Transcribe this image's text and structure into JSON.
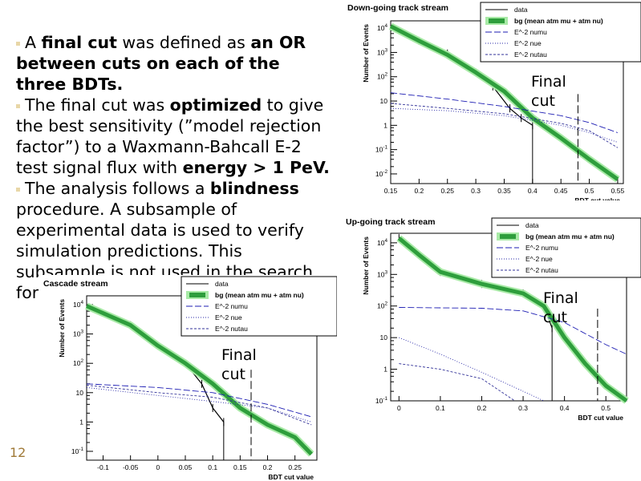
{
  "slide": {
    "page_number": "12",
    "bullets": [
      {
        "parts": [
          {
            "t": "A ",
            "b": false
          },
          {
            "t": "final cut",
            "b": true
          },
          {
            "t": " was defined as ",
            "b": false
          },
          {
            "t": "an OR between cuts on each of the three BDTs.",
            "b": true
          }
        ]
      },
      {
        "parts": [
          {
            "t": "The final cut was ",
            "b": false
          },
          {
            "t": "optimized",
            "b": true
          },
          {
            "t": " to give the best sensitivity (”model rejection factor”) to a Waxmann-Bahcall E-2 test signal flux with ",
            "b": false
          },
          {
            "t": "energy > 1 PeV.",
            "b": true
          }
        ]
      },
      {
        "parts": [
          {
            "t": "The analysis follows a ",
            "b": false
          },
          {
            "t": "blindness",
            "b": true
          },
          {
            "t": " procedure. A subsample of experimental data is used to verify simulation predictions. This subsample is not used in the search for",
            "b": false
          }
        ]
      }
    ]
  },
  "colors": {
    "bg_dark": "#2e9e3c",
    "bg_light": "#a8eaa6",
    "numu": "#1d1db3",
    "nue": "#2a2aa8",
    "nutau": "#333399",
    "bullet_accent": "#e8d7a8",
    "page_number": "#a07a38"
  },
  "chart_data": [
    {
      "type": "line",
      "title": "Down-going track stream",
      "xlabel": "BDT cut value",
      "ylabel": "Number of Events",
      "log_y": true,
      "xlim": [
        0.15,
        0.56
      ],
      "ylim": [
        0.004,
        20000
      ],
      "xticks": [
        "0.15",
        "0.2",
        "0.25",
        "0.3",
        "0.35",
        "0.4",
        "0.45",
        "0.5",
        "0.55"
      ],
      "yticks": [
        "10^{-2}",
        "10^{-1}",
        "1",
        "10",
        "10^{2}",
        "10^{3}",
        "10^{4}"
      ],
      "legend": [
        "data",
        "bg (mean atm mu + atm nu)",
        "E^-2 numu",
        "E^-2 nue",
        "E^-2 nutau"
      ],
      "final_cut": {
        "x": 0.48,
        "label": "Final cut"
      },
      "series": [
        {
          "name": "data",
          "x": [
            0.15,
            0.2,
            0.25,
            0.3,
            0.33,
            0.36,
            0.38,
            0.4
          ],
          "y": [
            12000,
            3000,
            900,
            150,
            40,
            5,
            2,
            1
          ]
        },
        {
          "name": "bg (mean atm mu + atm nu)",
          "x": [
            0.15,
            0.2,
            0.25,
            0.3,
            0.35,
            0.4,
            0.45,
            0.5,
            0.55
          ],
          "y": [
            12000,
            3000,
            800,
            150,
            25,
            2,
            0.3,
            0.04,
            0.006
          ]
        },
        {
          "name": "E^-2 numu",
          "x": [
            0.15,
            0.25,
            0.35,
            0.45,
            0.5,
            0.55
          ],
          "y": [
            22,
            12,
            6,
            2.5,
            1.3,
            0.5
          ]
        },
        {
          "name": "E^-2 nue",
          "x": [
            0.15,
            0.25,
            0.35,
            0.45,
            0.5,
            0.55
          ],
          "y": [
            5,
            4,
            2.5,
            1,
            0.5,
            0.2
          ]
        },
        {
          "name": "E^-2 nutau",
          "x": [
            0.15,
            0.25,
            0.35,
            0.45,
            0.5,
            0.55
          ],
          "y": [
            8,
            5,
            3,
            1.2,
            0.6,
            0.12
          ]
        }
      ]
    },
    {
      "type": "line",
      "title": "Up-going track stream",
      "xlabel": "BDT cut value",
      "ylabel": "Number of Events",
      "log_y": true,
      "xlim": [
        -0.02,
        0.55
      ],
      "ylim": [
        0.1,
        20000
      ],
      "xticks": [
        "0",
        "0.1",
        "0.2",
        "0.3",
        "0.4",
        "0.5"
      ],
      "yticks": [
        "10^{-1}",
        "1",
        "10",
        "10^{2}",
        "10^{3}",
        "10^{4}"
      ],
      "legend": [
        "data",
        "bg (mean atm mu + atm nu)",
        "E^-2 numu",
        "E^-2 nue",
        "E^-2 nutau"
      ],
      "final_cut": {
        "x": 0.48,
        "label": "Final cut"
      },
      "series": [
        {
          "name": "data",
          "x": [
            0,
            0.05,
            0.1,
            0.2,
            0.3,
            0.35,
            0.37
          ],
          "y": [
            14000,
            4000,
            1200,
            500,
            250,
            100,
            20
          ]
        },
        {
          "name": "bg (mean atm mu + atm nu)",
          "x": [
            0,
            0.05,
            0.1,
            0.2,
            0.3,
            0.35,
            0.4,
            0.45,
            0.5,
            0.55
          ],
          "y": [
            14000,
            4000,
            1200,
            500,
            250,
            100,
            10,
            1.5,
            0.3,
            0.1
          ]
        },
        {
          "name": "E^-2 numu",
          "x": [
            0,
            0.2,
            0.3,
            0.4,
            0.5,
            0.55
          ],
          "y": [
            90,
            85,
            70,
            30,
            6,
            3
          ]
        },
        {
          "name": "E^-2 nue",
          "x": [
            0,
            0.1,
            0.2,
            0.3,
            0.35
          ],
          "y": [
            10,
            3,
            0.8,
            0.2,
            0.1
          ]
        },
        {
          "name": "E^-2 nutau",
          "x": [
            0,
            0.1,
            0.2,
            0.28
          ],
          "y": [
            1.5,
            1,
            0.5,
            0.1
          ]
        }
      ]
    },
    {
      "type": "line",
      "title": "Cascade stream",
      "xlabel": "BDT cut value",
      "ylabel": "Number of Events",
      "log_y": true,
      "xlim": [
        -0.13,
        0.29
      ],
      "ylim": [
        0.05,
        20000
      ],
      "xticks": [
        "-0.1",
        "-0.05",
        "0",
        "0.05",
        "0.1",
        "0.15",
        "0.2",
        "0.25"
      ],
      "yticks": [
        "10^{-1}",
        "1",
        "10",
        "10^{2}",
        "10^{3}",
        "10^{4}"
      ],
      "legend": [
        "data",
        "bg (mean atm mu + atm nu)",
        "E^-2 numu",
        "E^-2 nue",
        "E^-2 nutau"
      ],
      "final_cut": {
        "x": 0.17,
        "label": "Final cut"
      },
      "series": [
        {
          "name": "data",
          "x": [
            -0.13,
            -0.05,
            0,
            0.05,
            0.08,
            0.1,
            0.12
          ],
          "y": [
            9000,
            2000,
            400,
            100,
            20,
            3,
            1
          ]
        },
        {
          "name": "bg (mean atm mu + atm nu)",
          "x": [
            -0.13,
            -0.05,
            0,
            0.05,
            0.1,
            0.15,
            0.2,
            0.25,
            0.28
          ],
          "y": [
            9000,
            2000,
            400,
            100,
            20,
            3,
            0.8,
            0.3,
            0.08
          ]
        },
        {
          "name": "E^-2 numu",
          "x": [
            -0.13,
            0,
            0.1,
            0.2,
            0.28
          ],
          "y": [
            20,
            15,
            10,
            4,
            1.5
          ]
        },
        {
          "name": "E^-2 nue",
          "x": [
            -0.13,
            0,
            0.1,
            0.2,
            0.28
          ],
          "y": [
            15,
            8,
            5,
            3,
            1
          ]
        },
        {
          "name": "E^-2 nutau",
          "x": [
            -0.13,
            0,
            0.1,
            0.2,
            0.28
          ],
          "y": [
            18,
            10,
            7,
            3,
            0.8
          ]
        }
      ]
    }
  ]
}
